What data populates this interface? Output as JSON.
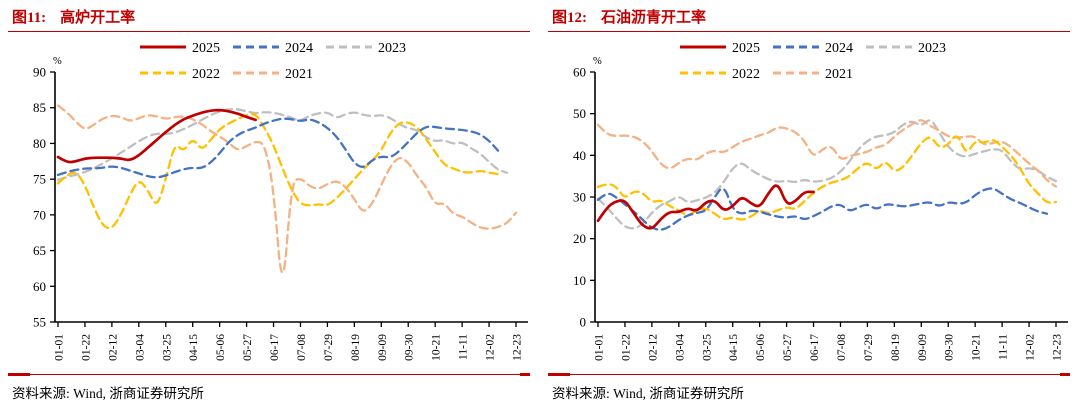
{
  "accent_color": "#C00000",
  "panels": [
    {
      "title_prefix": "图11:",
      "title": "高炉开工率",
      "source": "资料来源: Wind, 浙商证券研究所"
    },
    {
      "title_prefix": "图12:",
      "title": "石油沥青开工率",
      "source": "资料来源: Wind, 浙商证券研究所"
    }
  ],
  "chart_data": [
    {
      "type": "line",
      "title": "高炉开工率",
      "unit": "%",
      "ylim": [
        55,
        90
      ],
      "ytick_step": 5,
      "grid": false,
      "legend_position": "top-inside",
      "legend_rows": [
        [
          "2025",
          "2024",
          "2023"
        ],
        [
          "2022",
          "2021"
        ]
      ],
      "x_tick_labels": [
        "01-01",
        "01-22",
        "02-12",
        "03-04",
        "03-25",
        "04-15",
        "05-06",
        "05-27",
        "06-17",
        "07-08",
        "07-29",
        "08-19",
        "09-09",
        "09-30",
        "10-21",
        "11-11",
        "12-02",
        "12-23"
      ],
      "x_tick_days": [
        0,
        21,
        42,
        63,
        84,
        105,
        126,
        147,
        168,
        189,
        210,
        231,
        252,
        273,
        294,
        315,
        336,
        357
      ],
      "series": [
        {
          "name": "2023",
          "color": "#BFBFBF",
          "dash": "dashed",
          "start_day": 0,
          "step_days": 7,
          "values": [
            74.9,
            75.3,
            75.6,
            76.0,
            76.5,
            77.2,
            77.9,
            78.7,
            79.5,
            80.3,
            81.0,
            81.4,
            81.3,
            81.5,
            82.0,
            82.6,
            83.3,
            84.0,
            84.5,
            84.8,
            84.8,
            84.5,
            84.2,
            84.4,
            84.3,
            84.0,
            83.6,
            83.1,
            83.9,
            84.2,
            84.4,
            83.5,
            84.1,
            84.4,
            84.0,
            83.8,
            84.0,
            83.6,
            82.7,
            82.1,
            81.9,
            80.8,
            80.3,
            80.5,
            79.9,
            80.2,
            79.3,
            78.6,
            77.4,
            76.3,
            75.9
          ]
        },
        {
          "name": "2021",
          "color": "#F4B183",
          "dash": "dashed",
          "start_day": 0,
          "step_days": 7,
          "values": [
            85.3,
            84.4,
            83.0,
            81.9,
            82.6,
            83.5,
            83.9,
            83.7,
            83.1,
            83.5,
            84.0,
            83.8,
            83.4,
            83.7,
            83.8,
            83.4,
            82.7,
            81.7,
            81.0,
            80.1,
            79.0,
            79.6,
            80.3,
            80.0,
            74.0,
            57.8,
            74.6,
            75.2,
            74.0,
            73.6,
            74.3,
            74.8,
            74.0,
            72.2,
            70.2,
            71.5,
            74.2,
            76.8,
            78.2,
            77.4,
            75.4,
            73.9,
            71.4,
            71.7,
            70.1,
            69.8,
            68.9,
            68.2,
            68.0,
            68.3,
            68.8,
            70.3
          ]
        },
        {
          "name": "2022",
          "color": "#FFC000",
          "dash": "dashed",
          "start_day": 0,
          "step_days": 7,
          "values": [
            74.4,
            75.6,
            76.1,
            74.2,
            71.0,
            68.4,
            68.0,
            70.0,
            72.8,
            75.0,
            73.5,
            70.9,
            75.0,
            80.1,
            78.8,
            80.8,
            79.0,
            80.5,
            82.0,
            82.8,
            83.4,
            84.0,
            84.2,
            82.2,
            79.8,
            76.5,
            73.5,
            71.5,
            71.3,
            71.5,
            71.3,
            72.3,
            73.6,
            75.0,
            76.4,
            77.6,
            79.0,
            81.5,
            82.9,
            83.0,
            82.3,
            80.6,
            78.8,
            77.0,
            76.5,
            76.0,
            75.9,
            76.2,
            75.9,
            75.7
          ]
        },
        {
          "name": "2024",
          "color": "#4472C4",
          "dash": "dashed",
          "start_day": 0,
          "step_days": 7,
          "values": [
            75.6,
            76.0,
            76.3,
            76.5,
            76.5,
            76.6,
            76.8,
            76.6,
            76.2,
            75.8,
            75.4,
            75.2,
            75.5,
            76.0,
            76.4,
            76.6,
            76.5,
            77.3,
            78.6,
            80.2,
            81.2,
            81.8,
            82.2,
            82.8,
            83.2,
            83.5,
            83.4,
            83.1,
            83.4,
            83.0,
            82.2,
            81.0,
            79.2,
            77.2,
            76.5,
            77.7,
            78.2,
            78.0,
            78.9,
            80.2,
            81.5,
            82.4,
            82.3,
            82.1,
            82.0,
            81.9,
            81.7,
            81.3,
            80.4,
            79.0
          ]
        },
        {
          "name": "2025",
          "color": "#C00000",
          "dash": "solid",
          "start_day": 0,
          "step_days": 7,
          "values": [
            78.1,
            77.3,
            77.5,
            77.9,
            78.0,
            78.0,
            78.0,
            77.9,
            77.6,
            78.3,
            79.4,
            80.5,
            81.6,
            82.6,
            83.4,
            83.9,
            84.3,
            84.6,
            84.7,
            84.5,
            84.2,
            83.7,
            83.3
          ]
        }
      ]
    },
    {
      "type": "line",
      "title": "石油沥青开工率",
      "unit": "%",
      "ylim": [
        0,
        60
      ],
      "ytick_step": 10,
      "grid": false,
      "legend_position": "top-inside",
      "legend_rows": [
        [
          "2025",
          "2024",
          "2023"
        ],
        [
          "2022",
          "2021"
        ]
      ],
      "x_tick_labels": [
        "01-01",
        "01-22",
        "02-12",
        "03-04",
        "03-25",
        "04-15",
        "05-06",
        "05-27",
        "06-17",
        "07-08",
        "07-29",
        "08-19",
        "09-09",
        "09-30",
        "10-21",
        "11-11",
        "12-02",
        "12-23"
      ],
      "x_tick_days": [
        0,
        21,
        42,
        63,
        84,
        105,
        126,
        147,
        168,
        189,
        210,
        231,
        252,
        273,
        294,
        315,
        336,
        357
      ],
      "series": [
        {
          "name": "2023",
          "color": "#BFBFBF",
          "dash": "dashed",
          "start_day": 0,
          "step_days": 7,
          "values": [
            29.6,
            27.5,
            25.0,
            22.8,
            22.3,
            23.5,
            26.3,
            28.1,
            29.0,
            30.3,
            28.6,
            29.2,
            29.8,
            31.0,
            33.5,
            37.0,
            38.4,
            36.5,
            35.3,
            34.2,
            33.6,
            33.9,
            33.5,
            34.2,
            33.6,
            33.9,
            34.5,
            36.0,
            38.5,
            41.5,
            43.5,
            44.6,
            44.8,
            45.5,
            47.5,
            48.3,
            47.0,
            49.0,
            45.5,
            42.0,
            40.2,
            39.6,
            40.4,
            41.0,
            41.5,
            41.3,
            38.5,
            36.5,
            37.0,
            36.4,
            34.8,
            33.8
          ]
        },
        {
          "name": "2021",
          "color": "#F4B183",
          "dash": "dashed",
          "start_day": 0,
          "step_days": 7,
          "values": [
            47.3,
            45.0,
            44.6,
            44.8,
            44.5,
            43.4,
            41.0,
            37.8,
            36.6,
            38.2,
            39.3,
            38.8,
            40.5,
            41.2,
            40.6,
            42.0,
            43.3,
            44.0,
            44.8,
            45.4,
            46.8,
            46.5,
            45.6,
            43.5,
            39.5,
            41.5,
            42.4,
            38.8,
            39.8,
            40.3,
            40.8,
            42.0,
            42.4,
            44.5,
            46.2,
            47.5,
            48.8,
            47.0,
            46.0,
            44.5,
            44.2,
            44.5,
            44.6,
            42.4,
            43.0,
            43.4,
            42.0,
            40.0,
            38.0,
            36.4,
            34.0,
            32.5
          ]
        },
        {
          "name": "2022",
          "color": "#FFC000",
          "dash": "dashed",
          "start_day": 0,
          "step_days": 7,
          "values": [
            32.4,
            33.3,
            32.6,
            29.5,
            31.5,
            31.0,
            28.7,
            29.3,
            27.8,
            26.8,
            25.4,
            26.8,
            27.4,
            26.0,
            24.5,
            25.2,
            24.4,
            25.2,
            26.8,
            26.0,
            26.8,
            27.6,
            27.0,
            29.0,
            31.0,
            32.5,
            33.5,
            34.0,
            35.0,
            37.0,
            38.4,
            36.4,
            38.8,
            36.0,
            37.1,
            40.0,
            43.0,
            44.8,
            41.7,
            42.5,
            45.5,
            40.0,
            43.6,
            42.9,
            44.0,
            42.0,
            40.0,
            37.0,
            33.0,
            30.9,
            28.5,
            28.8
          ]
        },
        {
          "name": "2024",
          "color": "#4472C4",
          "dash": "dashed",
          "start_day": 0,
          "step_days": 7,
          "values": [
            29.3,
            31.2,
            30.0,
            28.2,
            26.5,
            24.5,
            22.5,
            22.0,
            22.9,
            24.5,
            25.6,
            26.2,
            26.6,
            30.0,
            33.0,
            27.0,
            25.8,
            26.8,
            26.5,
            25.8,
            25.3,
            25.0,
            25.5,
            24.5,
            25.4,
            26.5,
            27.8,
            28.3,
            26.5,
            27.5,
            28.4,
            26.9,
            28.3,
            28.1,
            27.7,
            28.0,
            28.5,
            28.8,
            27.7,
            28.8,
            28.4,
            28.6,
            30.5,
            31.8,
            32.2,
            30.8,
            29.4,
            28.6,
            27.5,
            26.5,
            26.0
          ]
        },
        {
          "name": "2025",
          "color": "#C00000",
          "dash": "solid",
          "start_day": 0,
          "step_days": 7,
          "values": [
            24.3,
            27.6,
            29.0,
            29.3,
            26.0,
            23.0,
            22.2,
            24.8,
            26.5,
            26.3,
            27.4,
            26.5,
            28.8,
            29.3,
            26.6,
            27.7,
            30.2,
            28.5,
            27.4,
            31.0,
            33.6,
            28.0,
            29.0,
            31.3,
            31.2
          ]
        }
      ]
    }
  ]
}
